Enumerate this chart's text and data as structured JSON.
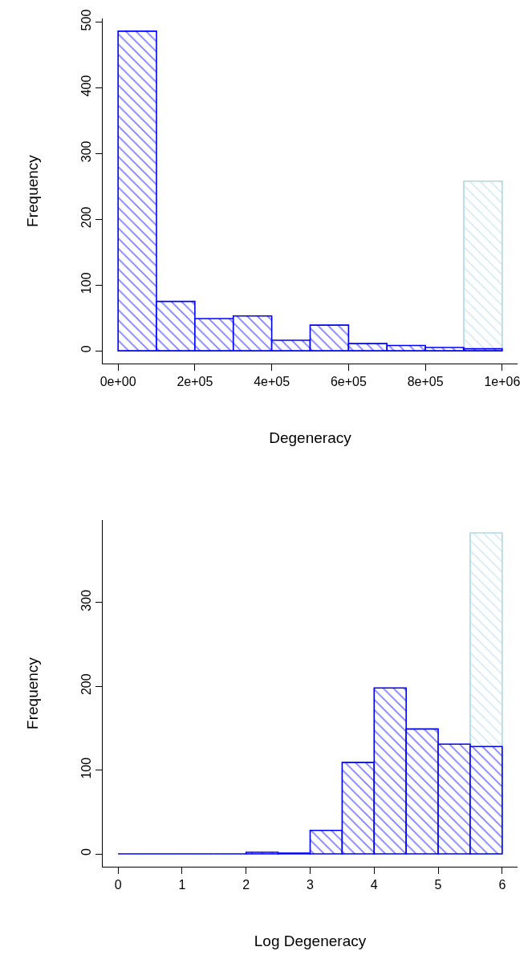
{
  "chart_data": [
    {
      "type": "histogram",
      "xlabel": "Degeneracy",
      "ylabel": "Frequency",
      "bins": [
        0,
        100000,
        200000,
        300000,
        400000,
        500000,
        600000,
        700000,
        800000,
        900000,
        1000000
      ],
      "series": [
        {
          "color": "#add8e6",
          "values": [
            null,
            null,
            null,
            null,
            null,
            null,
            null,
            null,
            null,
            258
          ]
        },
        {
          "color": "#0000ff",
          "values": [
            486,
            75,
            49,
            53,
            16,
            39,
            11,
            8,
            5,
            3
          ]
        }
      ],
      "xlim": [
        -40000,
        1040000
      ],
      "xticks": [
        {
          "value": 0,
          "label": "0e+00"
        },
        {
          "value": 200000,
          "label": "2e+05"
        },
        {
          "value": 400000,
          "label": "4e+05"
        },
        {
          "value": 600000,
          "label": "6e+05"
        },
        {
          "value": 800000,
          "label": "8e+05"
        },
        {
          "value": 1000000,
          "label": "1e+06"
        }
      ],
      "ylim": [
        -19.4,
        505.4
      ],
      "yticks": [
        0,
        100,
        200,
        300,
        400,
        500
      ]
    },
    {
      "type": "histogram",
      "xlabel": "Log Degeneracy",
      "ylabel": "Frequency",
      "bins": [
        0,
        0.5,
        1,
        1.5,
        2,
        2.5,
        3,
        3.5,
        4,
        4.5,
        5,
        5.5,
        6
      ],
      "series": [
        {
          "color": "#add8e6",
          "values": [
            null,
            null,
            null,
            null,
            null,
            null,
            null,
            null,
            null,
            null,
            null,
            383
          ]
        },
        {
          "color": "#0000ff",
          "values": [
            0,
            0,
            0,
            0,
            2,
            1,
            28,
            109,
            198,
            149,
            131,
            128
          ]
        }
      ],
      "xlim": [
        -0.24,
        6.24
      ],
      "xticks": [
        0,
        1,
        2,
        3,
        4,
        5,
        6
      ],
      "ylim": [
        -15.3,
        398.3
      ],
      "yticks": [
        0,
        100,
        200,
        300
      ]
    }
  ]
}
